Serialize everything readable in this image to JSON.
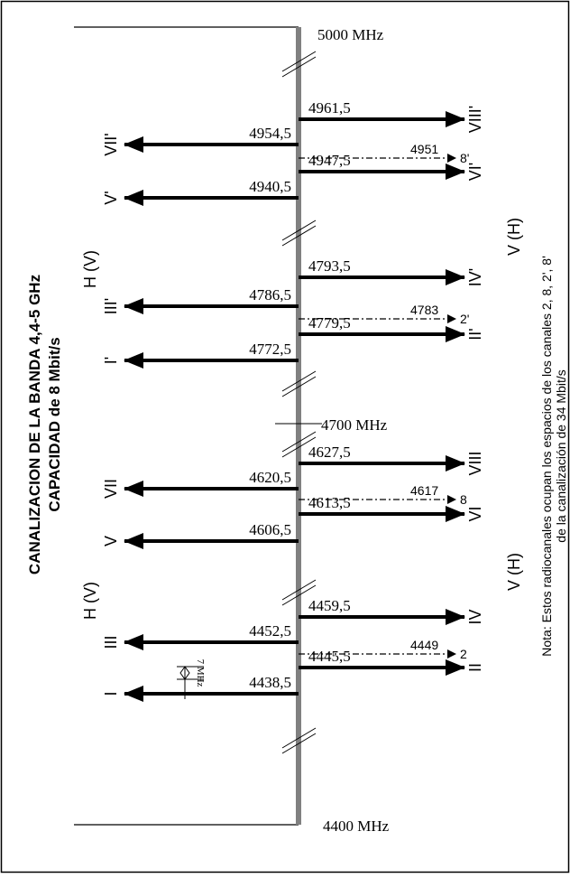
{
  "title": {
    "line1": "CANALIZACION DE LA BANDA 4,4-5 GHz",
    "line2": "CAPACIDAD de 8 Mbit/s"
  },
  "note": {
    "line1": "Nota: Estos radiocanales ocupan los espacios de los canales 2, 8, 2', 8'",
    "line2": "de la canalización de 34 Mbit/s"
  },
  "frequency_marks": {
    "top": "5000  MHz",
    "middle": "4700  MHz",
    "bottom": "4400  MHz"
  },
  "polarization_labels": {
    "left_upper": "H (V)",
    "left_lower": "H (V)",
    "right_upper": "V (H)",
    "right_lower": "V (H)"
  },
  "spacing_label": "7 MHz",
  "colors": {
    "axis": "#808080",
    "arrow": "#000000",
    "border": "#000000"
  },
  "upper_band": {
    "channels": [
      {
        "freq": "4961,5",
        "label": "VIII'",
        "direction": "right"
      },
      {
        "freq": "4954,5",
        "label": "VII'",
        "direction": "left"
      },
      {
        "freq": "4951",
        "label": "8'",
        "direction": "right",
        "style": "dashed"
      },
      {
        "freq": "4947,5",
        "label": "VI'",
        "direction": "right"
      },
      {
        "freq": "4940,5",
        "label": "V'",
        "direction": "left"
      },
      {
        "freq": "4793,5",
        "label": "IV'",
        "direction": "right"
      },
      {
        "freq": "4786,5",
        "label": "III'",
        "direction": "left"
      },
      {
        "freq": "4783",
        "label": "2'",
        "direction": "right",
        "style": "dashed"
      },
      {
        "freq": "4779,5",
        "label": "II'",
        "direction": "right"
      },
      {
        "freq": "4772,5",
        "label": "I'",
        "direction": "left"
      }
    ]
  },
  "lower_band": {
    "channels": [
      {
        "freq": "4627,5",
        "label": "VIII",
        "direction": "right"
      },
      {
        "freq": "4620,5",
        "label": "VII",
        "direction": "left"
      },
      {
        "freq": "4617",
        "label": "8",
        "direction": "right",
        "style": "dashed"
      },
      {
        "freq": "4613,5",
        "label": "VI",
        "direction": "right"
      },
      {
        "freq": "4606,5",
        "label": "V",
        "direction": "left"
      },
      {
        "freq": "4459,5",
        "label": "IV",
        "direction": "right"
      },
      {
        "freq": "4452,5",
        "label": "III",
        "direction": "left"
      },
      {
        "freq": "4449",
        "label": "2",
        "direction": "right",
        "style": "dashed"
      },
      {
        "freq": "4445,5",
        "label": "II",
        "direction": "right"
      },
      {
        "freq": "4438,5",
        "label": "I",
        "direction": "left"
      }
    ]
  }
}
